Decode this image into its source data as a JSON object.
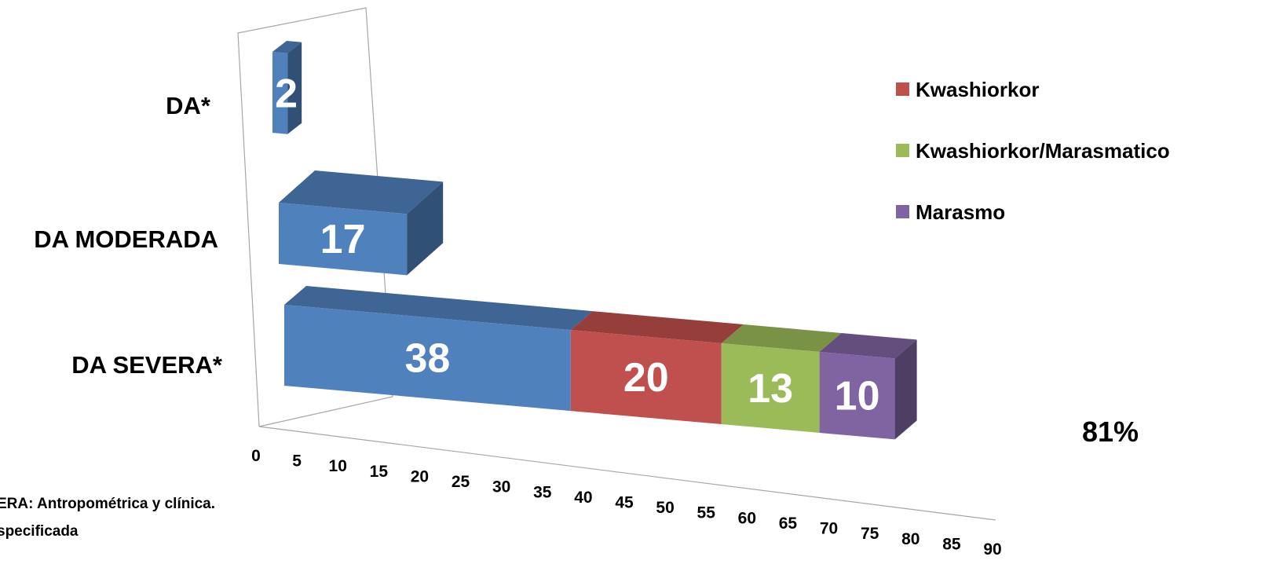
{
  "chart_data": {
    "type": "bar",
    "orientation": "horizontal",
    "stacked": true,
    "three_d": true,
    "categories": [
      "DA SEVERA*",
      "DA MODERADA",
      "DA*"
    ],
    "series": [
      {
        "name": "",
        "color": "#4F81BD",
        "values": [
          38,
          17,
          2
        ]
      },
      {
        "name": "Kwashiorkor",
        "color": "#C0504D",
        "values": [
          20,
          0,
          0
        ]
      },
      {
        "name": "Kwashiorkor/Marasmatico",
        "color": "#9BBB59",
        "values": [
          13,
          0,
          0
        ]
      },
      {
        "name": "Marasmo",
        "color": "#8064A2",
        "values": [
          10,
          0,
          0
        ]
      }
    ],
    "data_labels": {
      "DA SEVERA*": [
        "38",
        "20",
        "13",
        "10"
      ],
      "DA MODERADA": [
        "17"
      ],
      "DA*": [
        "2"
      ]
    },
    "xlim": [
      0,
      90
    ],
    "x_ticks": [
      "0",
      "5",
      "10",
      "15",
      "20",
      "25",
      "30",
      "35",
      "40",
      "45",
      "50",
      "55",
      "60",
      "65",
      "70",
      "75",
      "80",
      "85",
      "90"
    ],
    "legend_position": "right",
    "legend": [
      "Kwashiorkor",
      "Kwashiorkor/Marasmatico",
      "Marasmo"
    ],
    "annotation": "81%",
    "footnote_lines": [
      "ERA: Antropométrica y clínica.",
      "specificada"
    ]
  }
}
